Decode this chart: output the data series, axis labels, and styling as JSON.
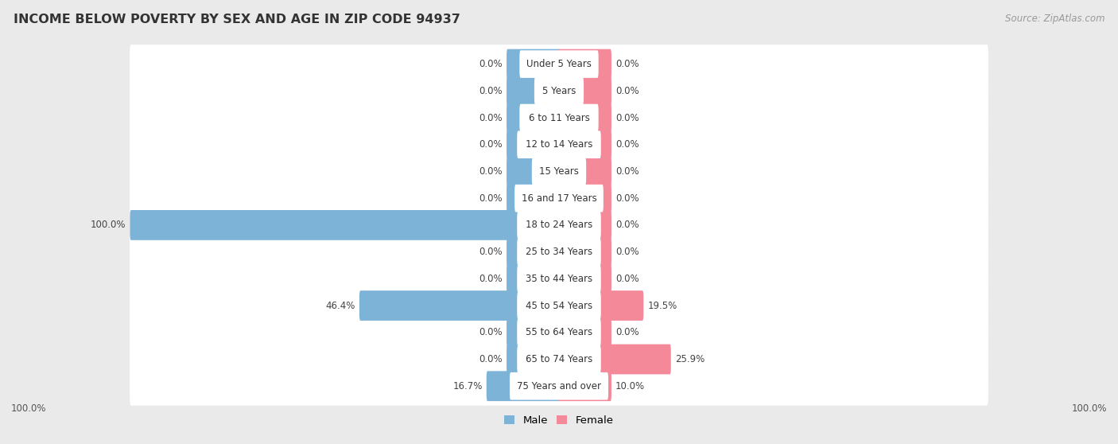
{
  "title": "INCOME BELOW POVERTY BY SEX AND AGE IN ZIP CODE 94937",
  "source": "Source: ZipAtlas.com",
  "categories": [
    "Under 5 Years",
    "5 Years",
    "6 to 11 Years",
    "12 to 14 Years",
    "15 Years",
    "16 and 17 Years",
    "18 to 24 Years",
    "25 to 34 Years",
    "35 to 44 Years",
    "45 to 54 Years",
    "55 to 64 Years",
    "65 to 74 Years",
    "75 Years and over"
  ],
  "male_values": [
    0.0,
    0.0,
    0.0,
    0.0,
    0.0,
    0.0,
    100.0,
    0.0,
    0.0,
    46.4,
    0.0,
    0.0,
    16.7
  ],
  "female_values": [
    0.0,
    0.0,
    0.0,
    0.0,
    0.0,
    0.0,
    0.0,
    0.0,
    0.0,
    19.5,
    0.0,
    25.9,
    10.0
  ],
  "male_color": "#7eb3d8",
  "female_color": "#f4899a",
  "male_label": "Male",
  "female_label": "Female",
  "bg_color": "#eaeaea",
  "bar_bg_color": "#ffffff",
  "max_value": 100.0,
  "stub_value": 12.0,
  "axis_label_left": "100.0%",
  "axis_label_right": "100.0%"
}
